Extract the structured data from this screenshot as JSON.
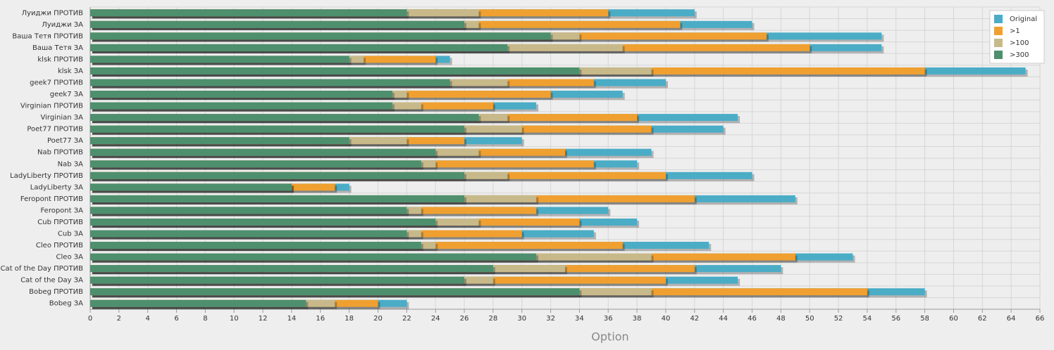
{
  "chart_data": {
    "type": "bar",
    "orientation": "horizontal",
    "mode": "overlap",
    "xlabel": "Option",
    "categories": [
      "Луиджи ПРОТИВ",
      "Луиджи ЗА",
      "Ваша Тетя ПРОТИВ",
      "Ваша Тетя ЗА",
      "klsk ПРОТИВ",
      "klsk ЗА",
      "geek7 ПРОТИВ",
      "geek7 ЗА",
      "Virginian ПРОТИВ",
      "Virginian ЗА",
      "Poet77 ПРОТИВ",
      "Poet77 ЗА",
      "Nab ПРОТИВ",
      "Nab ЗА",
      "LadyLiberty ПРОТИВ",
      "LadyLiberty ЗА",
      "Feropont ПРОТИВ",
      "Feropont ЗА",
      "Cub ПРОТИВ",
      "Cub ЗА",
      "Cleo ПРОТИВ",
      "Cleo ЗА",
      "Cat of the Day ПРОТИВ",
      "Cat of the Day ЗА",
      "Bobeg ПРОТИВ",
      "Bobeg ЗА"
    ],
    "series": [
      {
        "name": "Original",
        "color": "#4bacc6",
        "values": [
          42,
          46,
          55,
          55,
          25,
          65,
          40,
          37,
          31,
          45,
          44,
          30,
          39,
          38,
          46,
          18,
          49,
          36,
          38,
          35,
          43,
          53,
          48,
          45,
          58,
          22
        ]
      },
      {
        "name": ">1",
        "color": "#f0a030",
        "values": [
          36,
          41,
          47,
          50,
          24,
          58,
          35,
          32,
          28,
          38,
          39,
          26,
          33,
          35,
          40,
          17,
          42,
          31,
          34,
          30,
          37,
          49,
          42,
          40,
          54,
          20
        ]
      },
      {
        "name": ">100",
        "color": "#c8b98a",
        "values": [
          27,
          27,
          34,
          37,
          19,
          39,
          29,
          22,
          23,
          29,
          30,
          22,
          27,
          24,
          29,
          14,
          31,
          23,
          27,
          23,
          24,
          39,
          33,
          28,
          39,
          17
        ]
      },
      {
        "name": ">300",
        "color": "#4e8f6e",
        "values": [
          22,
          26,
          32,
          29,
          18,
          34,
          25,
          21,
          21,
          27,
          26,
          18,
          24,
          23,
          26,
          14,
          26,
          22,
          24,
          22,
          23,
          31,
          28,
          26,
          34,
          15
        ]
      }
    ],
    "xlim": [
      0,
      66
    ],
    "xticks": [
      0,
      2,
      4,
      6,
      8,
      10,
      12,
      14,
      16,
      18,
      20,
      22,
      24,
      26,
      28,
      30,
      32,
      34,
      36,
      38,
      40,
      42,
      44,
      46,
      48,
      50,
      52,
      54,
      56,
      58,
      60,
      62,
      64,
      66
    ],
    "grid": true,
    "legend": "top-right"
  }
}
